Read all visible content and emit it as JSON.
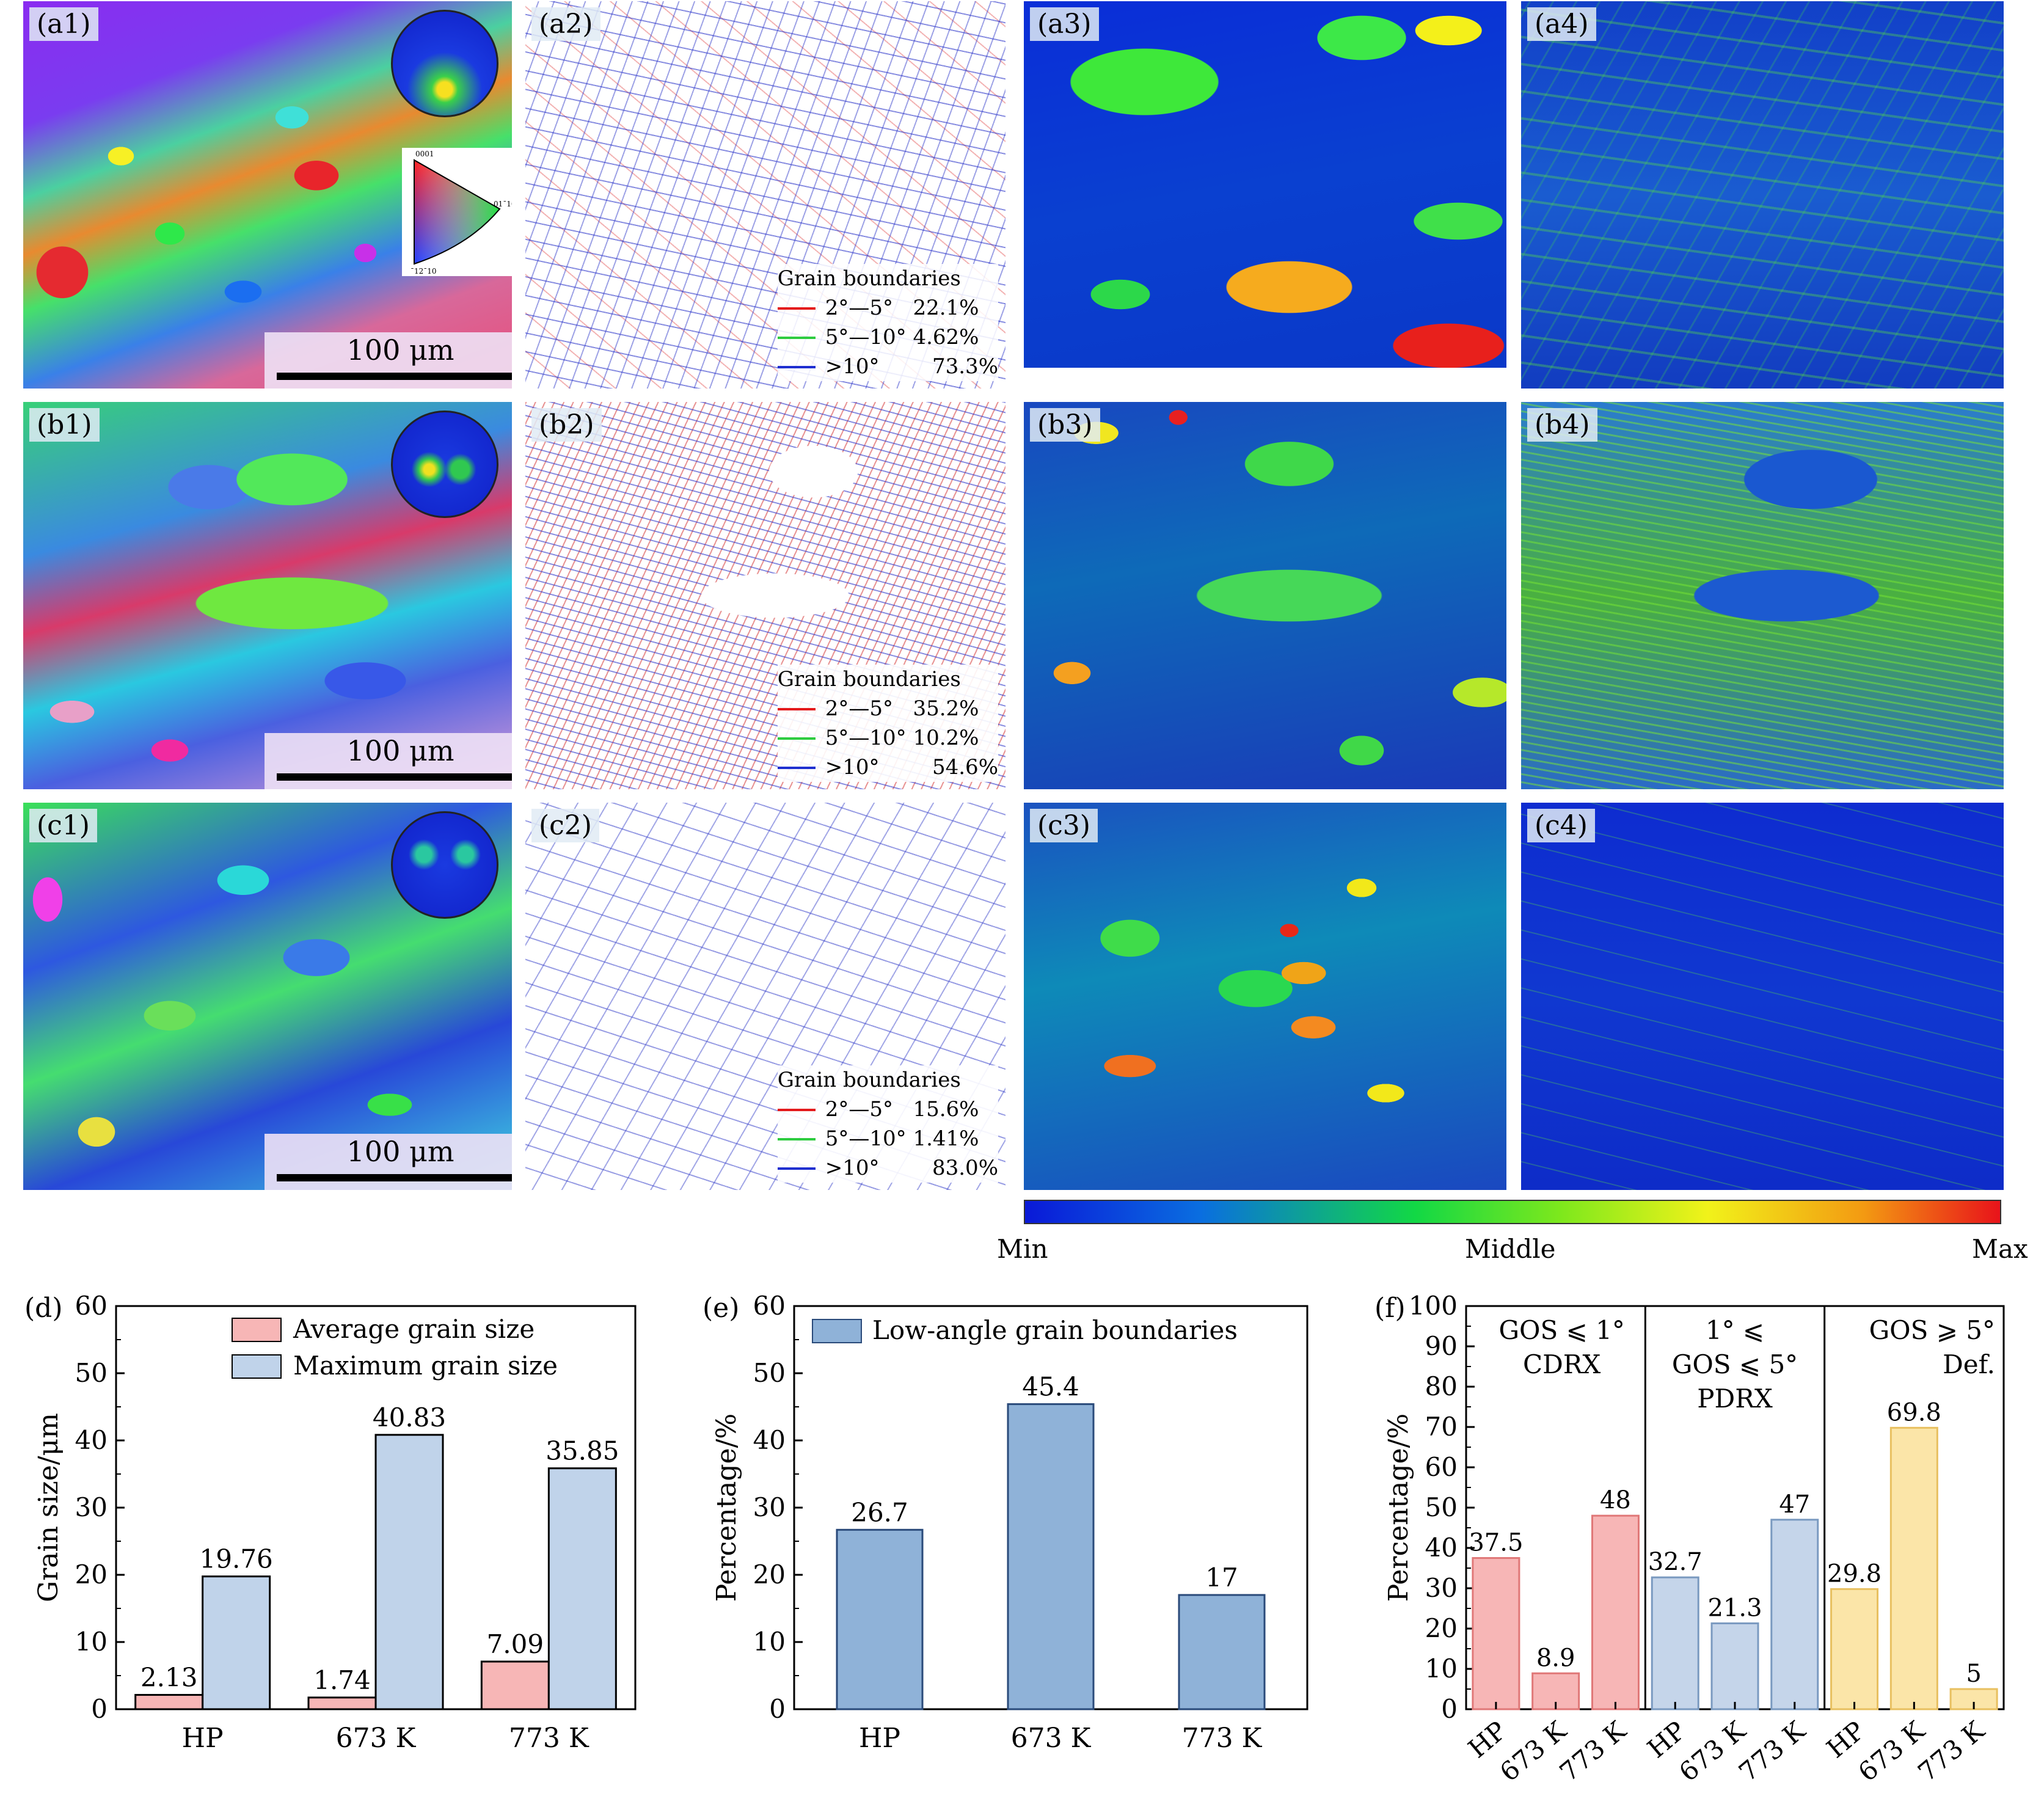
{
  "panels": {
    "a1": "(a1)",
    "a2": "(a2)",
    "a3": "(a3)",
    "a4": "(a4)",
    "b1": "(b1)",
    "b2": "(b2)",
    "b3": "(b3)",
    "b4": "(b4)",
    "c1": "(c1)",
    "c2": "(c2)",
    "c3": "(c3)",
    "c4": "(c4)"
  },
  "scale_bar": "100 μm",
  "grain_boundaries": {
    "title": "Grain boundaries",
    "rows": {
      "a": [
        {
          "range": "2°—5°",
          "value": "22.1%",
          "color": "#e41a1c"
        },
        {
          "range": "5°—10°",
          "value": "4.62%",
          "color": "#2ecc40"
        },
        {
          "range": ">10°",
          "value": "73.3%",
          "color": "#1f2fd0"
        }
      ],
      "b": [
        {
          "range": "2°—5°",
          "value": "35.2%",
          "color": "#e41a1c"
        },
        {
          "range": "5°—10°",
          "value": "10.2%",
          "color": "#2ecc40"
        },
        {
          "range": ">10°",
          "value": "54.6%",
          "color": "#1f2fd0"
        }
      ],
      "c": [
        {
          "range": "2°—5°",
          "value": "15.6%",
          "color": "#e41a1c"
        },
        {
          "range": "5°—10°",
          "value": "1.41%",
          "color": "#2ecc40"
        },
        {
          "range": ">10°",
          "value": "83.0%",
          "color": "#1f2fd0"
        }
      ]
    }
  },
  "ipf_labels": {
    "top": "0001",
    "right": "01¯10",
    "bottom": "¯12¯10"
  },
  "colorbar": {
    "min": "Min",
    "middle": "Middle",
    "max": "Max"
  },
  "chart_data": [
    {
      "panel": "(d)",
      "type": "bar",
      "categories": [
        "HP",
        "673 K",
        "773 K"
      ],
      "series": [
        {
          "name": "Average grain size",
          "values": [
            2.13,
            1.74,
            7.09
          ],
          "labels": [
            "2.13",
            "1.74",
            "7.09"
          ],
          "color": "#f7b6b6"
        },
        {
          "name": "Maximum grain size",
          "values": [
            19.76,
            40.83,
            35.85
          ],
          "labels": [
            "19.76",
            "40.83",
            "35.85"
          ],
          "color": "#c0d3ea"
        }
      ],
      "ylabel": "Grain size/μm",
      "ylim": [
        0,
        60
      ],
      "yticks": [
        0,
        10,
        20,
        30,
        40,
        50,
        60
      ],
      "legend": "top-right"
    },
    {
      "panel": "(e)",
      "type": "bar",
      "categories": [
        "HP",
        "673 K",
        "773 K"
      ],
      "series": [
        {
          "name": "Low-angle grain boundaries",
          "values": [
            26.7,
            45.4,
            17
          ],
          "labels": [
            "26.7",
            "45.4",
            "17"
          ],
          "color": "#8fb2d8"
        }
      ],
      "ylabel": "Percentage/%",
      "ylim": [
        0,
        60
      ],
      "yticks": [
        0,
        10,
        20,
        30,
        40,
        50,
        60
      ],
      "legend": "top"
    },
    {
      "panel": "(f)",
      "type": "bar",
      "categories": [
        "HP",
        "673 K",
        "773 K",
        "HP",
        "673 K",
        "773 K",
        "HP",
        "673 K",
        "773 K"
      ],
      "groups": [
        {
          "label_lines": [
            "GOS ⩽ 1°",
            "CDRX"
          ],
          "values": [
            37.5,
            8.9,
            48
          ],
          "labels": [
            "37.5",
            "8.9",
            "48"
          ],
          "color": "#f7b6b6"
        },
        {
          "label_lines": [
            "1° ⩽",
            "GOS ⩽ 5°",
            "PDRX"
          ],
          "values": [
            32.7,
            21.3,
            47
          ],
          "labels": [
            "32.7",
            "21.3",
            "47"
          ],
          "color": "#c5d5ea"
        },
        {
          "label_lines": [
            "GOS ⩾ 5°",
            "Def."
          ],
          "values": [
            29.8,
            69.8,
            5
          ],
          "labels": [
            "29.8",
            "69.8",
            "5"
          ],
          "color": "#fbe5a8"
        }
      ],
      "ylabel": "Percentage/%",
      "ylim": [
        0,
        100
      ],
      "yticks": [
        0,
        10,
        20,
        30,
        40,
        50,
        60,
        70,
        80,
        90,
        100
      ]
    }
  ]
}
